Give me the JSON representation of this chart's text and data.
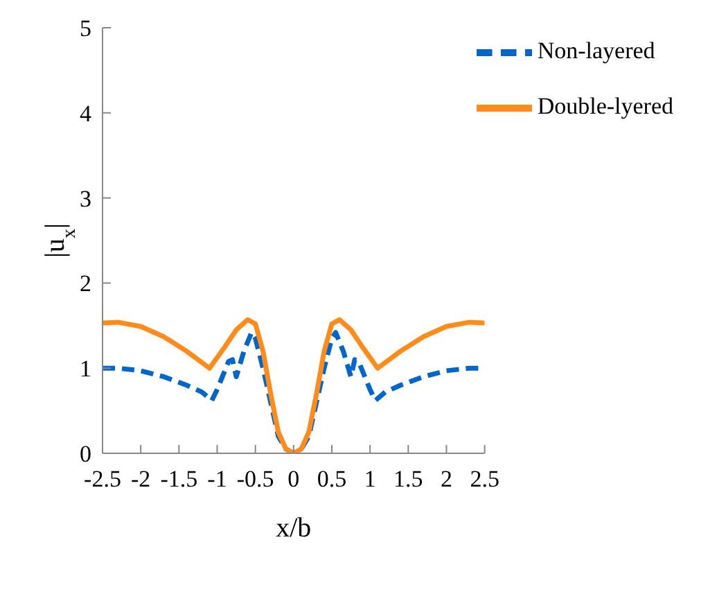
{
  "chart_data": {
    "type": "line",
    "xlabel": "x/b",
    "ylabel": "|u$_{x}$|",
    "xlim": [
      -2.5,
      2.5
    ],
    "ylim": [
      0,
      5
    ],
    "xticks": [
      -2.5,
      -2,
      -1.5,
      -1,
      -0.5,
      0,
      0.5,
      1,
      1.5,
      2,
      2.5
    ],
    "yticks": [
      0,
      1,
      2,
      3,
      4,
      5
    ],
    "grid": false,
    "legend": "top right",
    "marker": "none",
    "series": [
      {
        "name": "Non-layered",
        "color": "#0066cc",
        "line_style": "dashed",
        "x": [
          -2.5,
          -2.3,
          -2.0,
          -1.7,
          -1.4,
          -1.2,
          -1.07,
          -1.0,
          -0.85,
          -0.8,
          -0.75,
          -0.65,
          -0.55,
          -0.5,
          -0.4,
          -0.3,
          -0.2,
          -0.1,
          0,
          0.1,
          0.2,
          0.3,
          0.4,
          0.5,
          0.55,
          0.65,
          0.75,
          0.8,
          0.85,
          1.0,
          1.07,
          1.2,
          1.4,
          1.7,
          2.0,
          2.3,
          2.5
        ],
        "values": [
          1.0,
          1.0,
          0.97,
          0.9,
          0.8,
          0.72,
          0.62,
          0.75,
          1.08,
          1.1,
          0.9,
          1.2,
          1.42,
          1.35,
          1.0,
          0.6,
          0.2,
          0.05,
          0,
          0.05,
          0.2,
          0.6,
          1.0,
          1.35,
          1.42,
          1.2,
          0.9,
          1.1,
          1.08,
          0.75,
          0.62,
          0.72,
          0.8,
          0.9,
          0.97,
          1.0,
          1.0
        ]
      },
      {
        "name": "Double-lyered",
        "color": "#ff8c1a",
        "line_style": "solid",
        "x": [
          -2.5,
          -2.3,
          -2.0,
          -1.7,
          -1.4,
          -1.1,
          -0.9,
          -0.75,
          -0.6,
          -0.5,
          -0.4,
          -0.3,
          -0.2,
          -0.1,
          0,
          0.1,
          0.2,
          0.3,
          0.4,
          0.5,
          0.6,
          0.75,
          0.9,
          1.1,
          1.4,
          1.7,
          2.0,
          2.3,
          2.5
        ],
        "values": [
          1.53,
          1.54,
          1.49,
          1.37,
          1.2,
          1.0,
          1.25,
          1.45,
          1.57,
          1.52,
          1.2,
          0.7,
          0.25,
          0.05,
          0,
          0.05,
          0.25,
          0.7,
          1.2,
          1.52,
          1.57,
          1.45,
          1.25,
          1.0,
          1.2,
          1.37,
          1.49,
          1.54,
          1.53
        ]
      }
    ]
  }
}
